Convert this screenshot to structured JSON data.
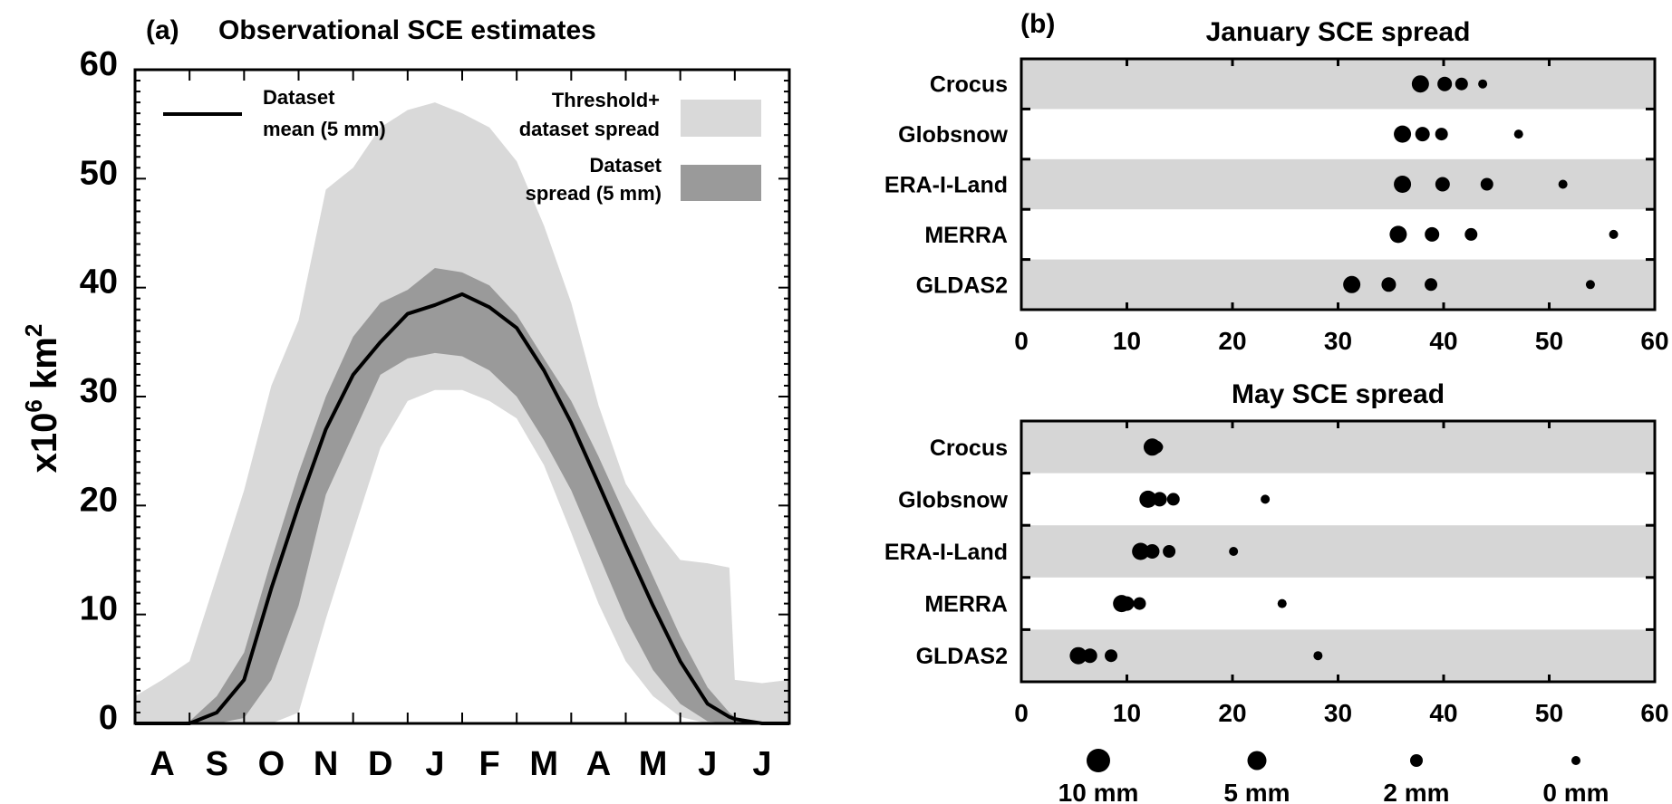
{
  "chart_data": [
    {
      "type": "area",
      "panel_label": "(a)",
      "title": "Observational SCE estimates",
      "ylabel_base": "x10",
      "ylabel_exp1": "6",
      "ylabel_unit": " km",
      "ylabel_exp2": "2",
      "ylim": [
        0,
        60
      ],
      "yticks": [
        "0",
        "10",
        "20",
        "30",
        "40",
        "50",
        "60"
      ],
      "xlim_months": [
        0,
        12
      ],
      "xticklabels": [
        "A",
        "S",
        "O",
        "N",
        "D",
        "J",
        "F",
        "M",
        "A",
        "M",
        "J",
        "J"
      ],
      "legend": {
        "mean_line": [
          "Dataset",
          "mean (5 mm)"
        ],
        "threshold_spread": [
          "Threshold+",
          "dataset spread"
        ],
        "dataset_spread": [
          "Dataset",
          "spread (5 mm)"
        ]
      },
      "colors": {
        "threshold_spread": "#d9d9d9",
        "dataset_spread": "#9a9a9a",
        "mean": "#000000"
      },
      "x": [
        0,
        0.5,
        1,
        1.5,
        2,
        2.5,
        3,
        3.5,
        4,
        4.5,
        5,
        5.5,
        6,
        6.5,
        7,
        7.5,
        8,
        8.5,
        9,
        9.5,
        10,
        10.5,
        10.9,
        11,
        11.5,
        12
      ],
      "series": [
        {
          "name": "Threshold+ dataset spread upper",
          "values": [
            2.5,
            4,
            5.7,
            13.5,
            21.4,
            31,
            37,
            49,
            51,
            54.7,
            56.3,
            57,
            56,
            54.7,
            51.6,
            45.7,
            38.6,
            29.2,
            22,
            18.2,
            15,
            14.7,
            14.3,
            4,
            3.7,
            4
          ]
        },
        {
          "name": "Threshold+ dataset spread lower",
          "values": [
            0,
            0,
            0,
            0,
            0,
            0,
            1,
            9.6,
            17.5,
            25.3,
            29.6,
            30.6,
            30.6,
            29.6,
            28,
            23.7,
            17.5,
            11,
            5.7,
            2.5,
            0.6,
            0,
            0,
            0,
            0,
            0
          ]
        },
        {
          "name": "Dataset spread upper",
          "values": [
            0,
            0,
            0.2,
            2.5,
            6.5,
            15,
            23,
            30,
            35.5,
            38.6,
            39.8,
            41.8,
            41.4,
            40.2,
            37.5,
            33.5,
            29.6,
            24.5,
            19,
            13.5,
            8,
            3.3,
            1,
            0.6,
            0.1,
            0
          ]
        },
        {
          "name": "Dataset spread lower",
          "values": [
            0,
            0,
            0,
            0,
            0.5,
            4,
            10.8,
            21,
            26.5,
            32,
            33.5,
            34,
            33.7,
            32.4,
            30,
            26,
            21.4,
            15.5,
            9.6,
            4.9,
            1.8,
            0.2,
            0,
            0,
            0,
            0
          ]
        },
        {
          "name": "Dataset mean (5 mm)",
          "values": [
            0,
            0,
            0,
            1,
            4,
            12.4,
            20,
            27,
            32,
            35,
            37.6,
            38.4,
            39.4,
            38.2,
            36.3,
            32.4,
            27.6,
            22,
            16.3,
            10.8,
            5.7,
            1.8,
            0.6,
            0.4,
            0,
            0
          ]
        }
      ]
    },
    {
      "type": "scatter",
      "panel_label": "(b)",
      "title": "January SCE spread",
      "xlim": [
        0,
        60
      ],
      "xticks": [
        "0",
        "10",
        "20",
        "30",
        "40",
        "50",
        "60"
      ],
      "categories": [
        "Crocus",
        "Globsnow",
        "ERA-I-Land",
        "MERRA",
        "GLDAS2"
      ],
      "thresholds_mm": [
        10,
        5,
        2,
        0
      ],
      "values": [
        [
          37.8,
          40.1,
          41.7,
          43.7
        ],
        [
          36.1,
          38.0,
          39.8,
          47.1
        ],
        [
          36.1,
          39.9,
          44.1,
          51.3
        ],
        [
          35.7,
          38.9,
          42.6,
          56.1
        ],
        [
          31.3,
          34.8,
          38.8,
          53.9
        ]
      ]
    },
    {
      "type": "scatter",
      "title": "May SCE spread",
      "xlim": [
        0,
        60
      ],
      "xticks": [
        "0",
        "10",
        "20",
        "30",
        "40",
        "50",
        "60"
      ],
      "categories": [
        "Crocus",
        "Globsnow",
        "ERA-I-Land",
        "MERRA",
        "GLDAS2"
      ],
      "thresholds_mm": [
        10,
        5,
        2,
        0
      ],
      "values": [
        [
          12.4,
          12.6,
          12.8,
          13.0
        ],
        [
          12.0,
          13.1,
          14.4,
          23.1
        ],
        [
          11.3,
          12.4,
          14.0,
          20.1
        ],
        [
          9.5,
          10.0,
          11.2,
          24.7
        ],
        [
          5.4,
          6.5,
          8.5,
          28.1
        ]
      ],
      "size_legend": [
        "10 mm",
        "5 mm",
        "2 mm",
        "0 mm"
      ]
    }
  ]
}
